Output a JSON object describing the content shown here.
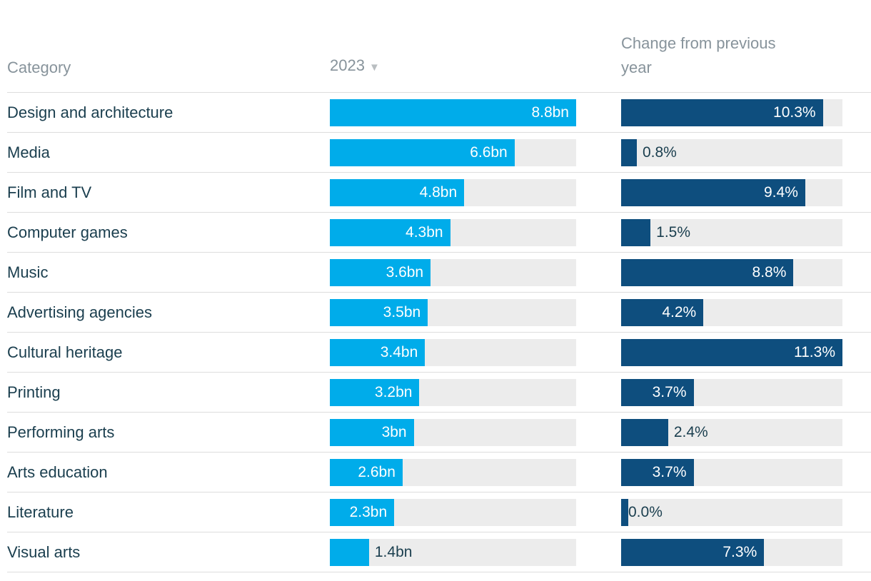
{
  "colors": {
    "bar_year": "#00ACEA",
    "bar_change": "#0E4E7E",
    "track": "#ECECEC",
    "label_dark": "#1A3E4E",
    "label_light": "#FFFFFF",
    "header_text": "#87939B",
    "sort_icon": "#B9BEC1",
    "border": "#DDDDDD"
  },
  "table": {
    "headers": {
      "category": "Category",
      "year": "2023",
      "sort_icon": "▼",
      "change": "Change from previous year"
    },
    "rows": [
      {
        "category": "Design and architecture",
        "year_value": 8.8,
        "year_label": "8.8bn",
        "change_value": 10.3,
        "change_label": "10.3%"
      },
      {
        "category": "Media",
        "year_value": 6.6,
        "year_label": "6.6bn",
        "change_value": 0.8,
        "change_label": "0.8%"
      },
      {
        "category": "Film and TV",
        "year_value": 4.8,
        "year_label": "4.8bn",
        "change_value": 9.4,
        "change_label": "9.4%"
      },
      {
        "category": "Computer games",
        "year_value": 4.3,
        "year_label": "4.3bn",
        "change_value": 1.5,
        "change_label": "1.5%"
      },
      {
        "category": "Music",
        "year_value": 3.6,
        "year_label": "3.6bn",
        "change_value": 8.8,
        "change_label": "8.8%"
      },
      {
        "category": "Advertising agencies",
        "year_value": 3.5,
        "year_label": "3.5bn",
        "change_value": 4.2,
        "change_label": "4.2%"
      },
      {
        "category": "Cultural heritage",
        "year_value": 3.4,
        "year_label": "3.4bn",
        "change_value": 11.3,
        "change_label": "11.3%"
      },
      {
        "category": "Printing",
        "year_value": 3.2,
        "year_label": "3.2bn",
        "change_value": 3.7,
        "change_label": "3.7%"
      },
      {
        "category": "Performing arts",
        "year_value": 3.0,
        "year_label": "3bn",
        "change_value": 2.4,
        "change_label": "2.4%"
      },
      {
        "category": "Arts education",
        "year_value": 2.6,
        "year_label": "2.6bn",
        "change_value": 3.7,
        "change_label": "3.7%"
      },
      {
        "category": "Literature",
        "year_value": 2.3,
        "year_label": "2.3bn",
        "change_value": 0.0,
        "change_label": "0.0%"
      },
      {
        "category": "Visual arts",
        "year_value": 1.4,
        "year_label": "1.4bn",
        "change_value": 7.3,
        "change_label": "7.3%"
      }
    ]
  },
  "chart_data": {
    "type": "bar",
    "title": "",
    "categories": [
      "Design and architecture",
      "Media",
      "Film and TV",
      "Computer games",
      "Music",
      "Advertising agencies",
      "Cultural heritage",
      "Printing",
      "Performing arts",
      "Arts education",
      "Literature",
      "Visual arts"
    ],
    "series": [
      {
        "name": "2023",
        "unit": "bn",
        "values": [
          8.8,
          6.6,
          4.8,
          4.3,
          3.6,
          3.5,
          3.4,
          3.2,
          3.0,
          2.6,
          2.3,
          1.4
        ],
        "color": "#00ACEA",
        "xlim": [
          0,
          8.8
        ]
      },
      {
        "name": "Change from previous year",
        "unit": "%",
        "values": [
          10.3,
          0.8,
          9.4,
          1.5,
          8.8,
          4.2,
          11.3,
          3.7,
          2.4,
          3.7,
          0.0,
          7.3
        ],
        "color": "#0E4E7E",
        "xlim": [
          0,
          11.3
        ]
      }
    ],
    "orientation": "horizontal",
    "grid": false,
    "legend_position": "column-headers",
    "sorted_by": "2023 descending"
  }
}
